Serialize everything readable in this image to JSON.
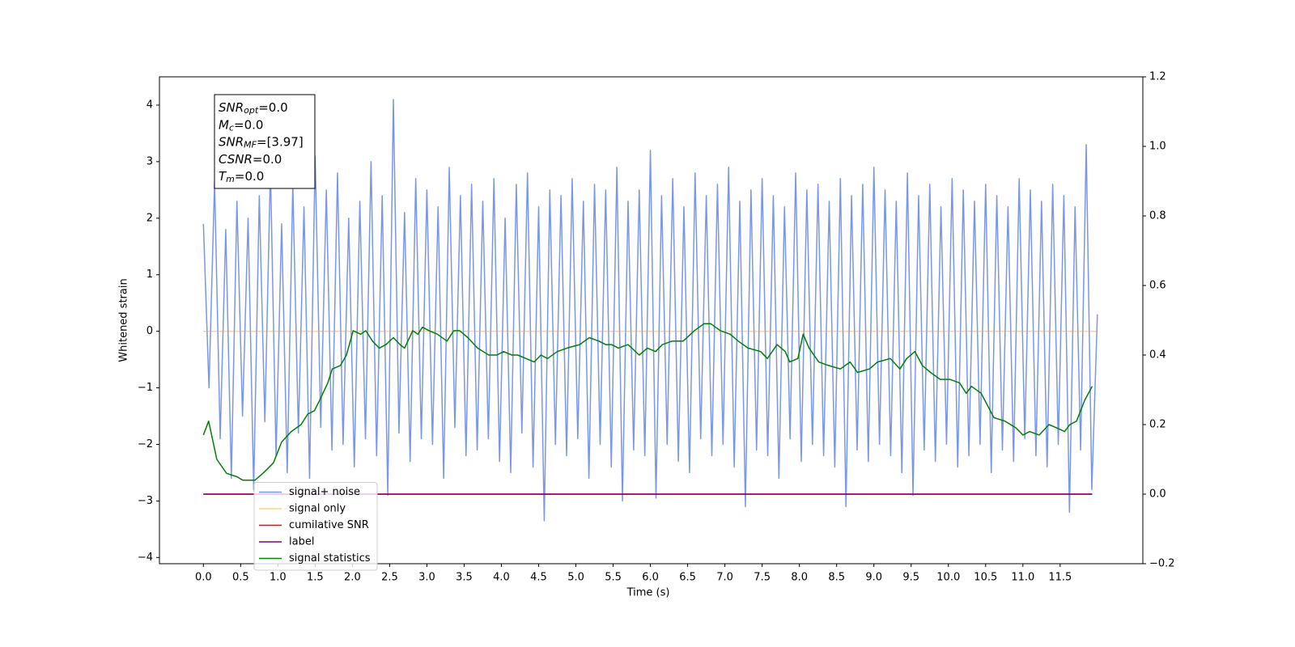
{
  "chart_data": {
    "type": "line",
    "xlabel": "Time (s)",
    "ylabel": "Whitened strain",
    "xlim": [
      -0.59,
      12.61
    ],
    "ylim": [
      -4.11,
      4.5
    ],
    "y2lim": [
      -0.2,
      1.2
    ],
    "xticks": [
      {
        "value": 0,
        "label": "0.0"
      },
      0.5,
      {
        "value": 1,
        "label": "1.0"
      },
      1.5,
      {
        "value": 2,
        "label": "2.0"
      },
      2.5,
      {
        "value": 3,
        "label": "3.0"
      },
      3.5,
      {
        "value": 4,
        "label": "4.0"
      },
      4.5,
      {
        "value": 5,
        "label": "5.0"
      },
      5.5,
      {
        "value": 6,
        "label": "6.0"
      },
      6.5,
      {
        "value": 7,
        "label": "7.0"
      },
      7.5,
      {
        "value": 8,
        "label": "8.0"
      },
      8.5,
      {
        "value": 9,
        "label": "9.0"
      },
      9.5,
      {
        "value": 10,
        "label": "10.0"
      },
      10.5,
      {
        "value": 11,
        "label": "11.0"
      },
      11.5
    ],
    "yticks": [
      {
        "value": -4,
        "label": "−4"
      },
      {
        "value": -3,
        "label": "−3"
      },
      {
        "value": -2,
        "label": "−2"
      },
      {
        "value": -1,
        "label": "−1"
      },
      0,
      1,
      2,
      3,
      4
    ],
    "y2ticks": [
      {
        "value": -0.2,
        "label": "−0.2"
      },
      {
        "value": 0,
        "label": "0.0"
      },
      0.2,
      0.4,
      0.6,
      0.8,
      {
        "value": 1,
        "label": "1.0"
      },
      1.2
    ],
    "legend_loc": "lower left",
    "annotation": [
      {
        "base": "SNR",
        "sub": "opt",
        "text": "=0.0"
      },
      {
        "base": "M",
        "sub": "c",
        "text": "=0.0"
      },
      {
        "base": "SNR",
        "sub": "MF",
        "text": "=[3.97]"
      },
      {
        "base": "CSNR",
        "text": "=0.0"
      },
      {
        "base": "T",
        "sub": "m",
        "text": "=0.0"
      }
    ],
    "series": [
      {
        "name": "signal+ noise",
        "color": "royalblue",
        "alpha": 0.7,
        "x": [
          0,
          0.075,
          0.15,
          0.225,
          0.3,
          0.375,
          0.45,
          0.525,
          0.6,
          0.675,
          0.75,
          0.825,
          0.9,
          0.975,
          1.05,
          1.125,
          1.2,
          1.275,
          1.35,
          1.425,
          1.5,
          1.575,
          1.65,
          1.725,
          1.8,
          1.875,
          1.95,
          2.025,
          2.1,
          2.175,
          2.25,
          2.325,
          2.4,
          2.475,
          2.55,
          2.625,
          2.7,
          2.775,
          2.85,
          2.925,
          3,
          3.075,
          3.15,
          3.225,
          3.3,
          3.375,
          3.45,
          3.525,
          3.6,
          3.675,
          3.75,
          3.825,
          3.9,
          3.975,
          4.05,
          4.125,
          4.2,
          4.275,
          4.35,
          4.425,
          4.5,
          4.575,
          4.65,
          4.725,
          4.8,
          4.875,
          4.95,
          5.025,
          5.1,
          5.175,
          5.25,
          5.325,
          5.4,
          5.475,
          5.55,
          5.625,
          5.7,
          5.775,
          5.85,
          5.925,
          6,
          6.075,
          6.15,
          6.225,
          6.3,
          6.375,
          6.45,
          6.525,
          6.6,
          6.675,
          6.75,
          6.825,
          6.9,
          6.975,
          7.05,
          7.125,
          7.2,
          7.275,
          7.35,
          7.425,
          7.5,
          7.575,
          7.65,
          7.725,
          7.8,
          7.875,
          7.95,
          8.025,
          8.1,
          8.175,
          8.25,
          8.325,
          8.4,
          8.475,
          8.55,
          8.625,
          8.7,
          8.775,
          8.85,
          8.925,
          9,
          9.075,
          9.15,
          9.225,
          9.3,
          9.375,
          9.45,
          9.525,
          9.6,
          9.675,
          9.75,
          9.825,
          9.9,
          9.975,
          10.05,
          10.125,
          10.2,
          10.275,
          10.35,
          10.425,
          10.5,
          10.575,
          10.65,
          10.725,
          10.8,
          10.875,
          10.95,
          11.025,
          11.1,
          11.175,
          11.25,
          11.325,
          11.4,
          11.475,
          11.55,
          11.625,
          11.7,
          11.775,
          11.85,
          11.925,
          12
        ],
        "values": [
          1.9,
          -1.0,
          2.65,
          -1.9,
          1.8,
          -2.6,
          2.3,
          -1.5,
          2.0,
          -2.8,
          2.4,
          -1.6,
          2.9,
          -2.2,
          1.9,
          -2.5,
          2.6,
          -1.8,
          2.2,
          -2.6,
          3.1,
          -1.7,
          2.5,
          -2.1,
          2.8,
          -2.0,
          2.0,
          -2.4,
          2.3,
          -1.9,
          3.0,
          -2.2,
          2.4,
          -2.9,
          4.1,
          -1.8,
          2.1,
          -2.3,
          2.7,
          -1.9,
          2.5,
          -2.0,
          2.2,
          -2.6,
          2.9,
          -1.7,
          2.4,
          -2.2,
          2.6,
          -2.1,
          2.3,
          -1.9,
          2.7,
          -2.3,
          2.0,
          -2.5,
          2.6,
          -1.8,
          2.8,
          -2.4,
          2.2,
          -3.35,
          2.5,
          -2.0,
          2.4,
          -2.2,
          2.7,
          -1.9,
          2.3,
          -2.6,
          2.6,
          -2.0,
          2.5,
          -2.4,
          2.9,
          -3.0,
          2.3,
          -2.1,
          2.5,
          -2.2,
          3.2,
          -2.95,
          2.4,
          -2.0,
          2.7,
          -2.3,
          2.2,
          -2.5,
          2.8,
          -1.9,
          2.4,
          -2.2,
          2.6,
          -2.0,
          2.9,
          -2.4,
          2.3,
          -3.1,
          2.5,
          -2.1,
          2.7,
          -2.2,
          2.4,
          -2.6,
          2.2,
          -1.9,
          2.8,
          -2.3,
          2.5,
          -2.0,
          2.6,
          -2.2,
          2.3,
          -2.4,
          2.7,
          -3.1,
          2.4,
          -2.1,
          2.6,
          -2.3,
          2.9,
          -2.0,
          2.5,
          -2.2,
          2.3,
          -2.5,
          2.8,
          -2.9,
          2.4,
          -2.1,
          2.6,
          -2.3,
          2.2,
          -2.0,
          2.7,
          -2.4,
          2.5,
          -2.2,
          2.3,
          -2.0,
          2.6,
          -2.5,
          2.4,
          -2.1,
          2.2,
          -2.3,
          2.7,
          -1.9,
          2.5,
          -2.2,
          2.3,
          -2.4,
          2.6,
          -2.0,
          2.4,
          -3.2,
          2.2,
          -2.1,
          3.3,
          -2.8,
          0.3
        ]
      },
      {
        "name": "signal only",
        "color": "orange",
        "alpha": 0.5,
        "x": [
          0,
          12
        ],
        "values": [
          0,
          0
        ]
      },
      {
        "name": "cumilative SNR",
        "color": "red",
        "axis": "y2",
        "x": [
          0,
          11.93
        ],
        "values": [
          0,
          0
        ]
      },
      {
        "name": "label",
        "color": "purple",
        "axis": "y2",
        "x": [
          0,
          11.93
        ],
        "values": [
          0,
          0
        ]
      },
      {
        "name": "signal statistics",
        "color": "green",
        "axis": "y2",
        "x": [
          0,
          0.07,
          0.18,
          0.31,
          0.45,
          0.53,
          0.69,
          0.8,
          0.94,
          1.05,
          1.18,
          1.31,
          1.4,
          1.49,
          1.56,
          1.67,
          1.73,
          1.84,
          1.92,
          2.01,
          2.11,
          2.18,
          2.27,
          2.36,
          2.45,
          2.55,
          2.64,
          2.7,
          2.81,
          2.88,
          2.94,
          3.03,
          3.14,
          3.27,
          3.36,
          3.44,
          3.55,
          3.68,
          3.83,
          3.94,
          4.03,
          4.14,
          4.22,
          4.33,
          4.44,
          4.53,
          4.62,
          4.75,
          4.88,
          5.05,
          5.18,
          5.31,
          5.4,
          5.48,
          5.57,
          5.7,
          5.85,
          5.96,
          6.07,
          6.16,
          6.29,
          6.44,
          6.59,
          6.72,
          6.81,
          6.94,
          7.07,
          7.18,
          7.31,
          7.48,
          7.57,
          7.7,
          7.81,
          7.87,
          7.98,
          8.05,
          8.13,
          8.26,
          8.39,
          8.55,
          8.68,
          8.78,
          8.94,
          9.05,
          9.22,
          9.35,
          9.44,
          9.55,
          9.65,
          9.76,
          9.89,
          10.02,
          10.15,
          10.24,
          10.31,
          10.44,
          10.61,
          10.76,
          10.91,
          11,
          11.09,
          11.22,
          11.35,
          11.46,
          11.56,
          11.63,
          11.72,
          11.83,
          11.93
        ],
        "values": [
          0.17,
          0.21,
          0.1,
          0.06,
          0.05,
          0.04,
          0.04,
          0.06,
          0.09,
          0.15,
          0.18,
          0.2,
          0.23,
          0.24,
          0.27,
          0.32,
          0.36,
          0.37,
          0.4,
          0.47,
          0.46,
          0.47,
          0.44,
          0.42,
          0.43,
          0.45,
          0.43,
          0.42,
          0.47,
          0.46,
          0.48,
          0.47,
          0.46,
          0.44,
          0.47,
          0.47,
          0.45,
          0.42,
          0.4,
          0.4,
          0.41,
          0.4,
          0.4,
          0.39,
          0.38,
          0.4,
          0.39,
          0.41,
          0.42,
          0.43,
          0.45,
          0.44,
          0.43,
          0.43,
          0.42,
          0.43,
          0.4,
          0.42,
          0.41,
          0.43,
          0.44,
          0.44,
          0.47,
          0.49,
          0.49,
          0.47,
          0.46,
          0.44,
          0.42,
          0.41,
          0.39,
          0.43,
          0.41,
          0.38,
          0.39,
          0.46,
          0.42,
          0.38,
          0.37,
          0.36,
          0.38,
          0.35,
          0.36,
          0.38,
          0.39,
          0.36,
          0.39,
          0.41,
          0.37,
          0.35,
          0.33,
          0.33,
          0.32,
          0.29,
          0.31,
          0.29,
          0.22,
          0.21,
          0.19,
          0.17,
          0.18,
          0.17,
          0.2,
          0.19,
          0.18,
          0.2,
          0.21,
          0.27,
          0.31
        ]
      }
    ]
  }
}
